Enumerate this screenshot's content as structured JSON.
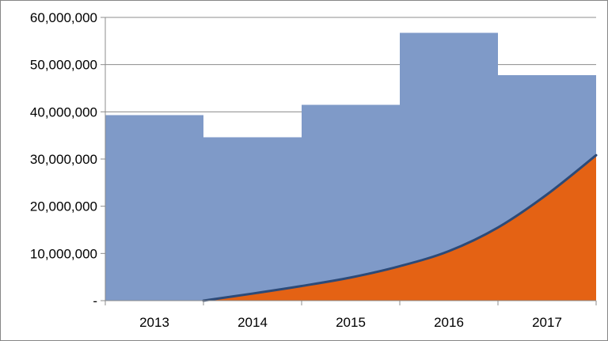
{
  "chart_data": {
    "type": "area",
    "categories": [
      "2013",
      "2014",
      "2015",
      "2016",
      "2017"
    ],
    "ylim": [
      0,
      60000000
    ],
    "yticks": [
      {
        "value": 0,
        "label": "-"
      },
      {
        "value": 10000000,
        "label": "10,000,000"
      },
      {
        "value": 20000000,
        "label": "20,000,000"
      },
      {
        "value": 30000000,
        "label": "30,000,000"
      },
      {
        "value": 40000000,
        "label": "40,000,000"
      },
      {
        "value": 50000000,
        "label": "50,000,000"
      },
      {
        "value": 60000000,
        "label": "60,000,000"
      }
    ],
    "grid": "horizontal",
    "legend": "none",
    "series": [
      {
        "type": "step-area",
        "color": "#7f9ac8",
        "values": [
          39300000,
          34600000,
          41500000,
          56700000,
          47800000
        ]
      },
      {
        "type": "area",
        "color": "#e46214",
        "line_color": "#2c4a78",
        "x": [
          2013.5,
          2014,
          2014.5,
          2015,
          2015.5,
          2016,
          2016.5,
          2017,
          2017.5
        ],
        "values": [
          0,
          1500000,
          3100000,
          4900000,
          7300000,
          10500000,
          15500000,
          22500000,
          30800000
        ]
      }
    ]
  }
}
